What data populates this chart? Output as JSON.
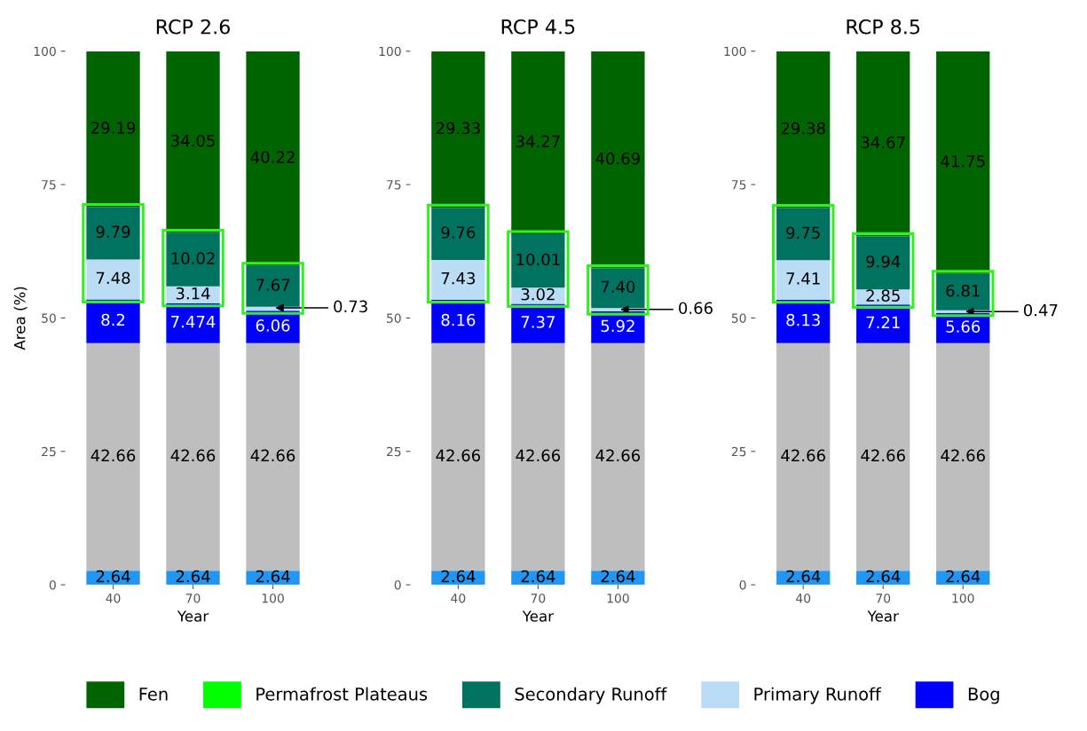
{
  "chart_data": [
    {
      "type": "bar",
      "stacked": true,
      "title": "RCP 2.6",
      "xlabel": "Year",
      "ylabel": "Area (%)",
      "categories": [
        "40",
        "70",
        "100"
      ],
      "ylim": [
        0,
        100
      ],
      "yticks": [
        0,
        25,
        50,
        75,
        100
      ],
      "grid": false,
      "legend": "bottom",
      "series": [
        {
          "color": "#2196f3",
          "values": [
            2.64,
            2.64,
            2.64
          ],
          "value_labels": [
            "2.64",
            "2.64",
            "2.64"
          ]
        },
        {
          "color": "#bebebe",
          "values": [
            42.66,
            42.66,
            42.66
          ],
          "value_labels": [
            "42.66",
            "42.66",
            "42.66"
          ]
        },
        {
          "name": "Bog",
          "color": "#0000ff",
          "values": [
            8.2,
            7.474,
            6.06
          ],
          "value_labels": [
            "8.2",
            "7.474",
            "6.06"
          ]
        },
        {
          "name": "Primary Runoff",
          "color": "#bbdcf5",
          "values": [
            7.48,
            3.14,
            0.73
          ],
          "value_labels": [
            "7.48",
            "3.14",
            null
          ]
        },
        {
          "name": "Secondary Runoff",
          "color": "#007360",
          "values": [
            9.79,
            10.02,
            7.67
          ],
          "value_labels": [
            "9.79",
            "10.02",
            "7.67"
          ]
        },
        {
          "name": "Permafrost Plateaus",
          "color": "#00ff00",
          "values": [
            null,
            null,
            null
          ]
        },
        {
          "name": "Fen",
          "color": "#006400",
          "values": [
            29.19,
            34.05,
            40.22
          ],
          "value_labels": [
            "29.19",
            "34.05",
            "40.22"
          ]
        }
      ],
      "annotations": [
        {
          "text": "0.73",
          "x": "100",
          "y": 51.9
        }
      ]
    },
    {
      "type": "bar",
      "stacked": true,
      "title": "RCP 4.5",
      "xlabel": "Year",
      "categories": [
        "40",
        "70",
        "100"
      ],
      "ylim": [
        0,
        100
      ],
      "yticks": [
        0,
        25,
        50,
        75,
        100
      ],
      "grid": false,
      "series": [
        {
          "color": "#2196f3",
          "values": [
            2.64,
            2.64,
            2.64
          ],
          "value_labels": [
            "2.64",
            "2.64",
            "2.64"
          ]
        },
        {
          "color": "#bebebe",
          "values": [
            42.66,
            42.66,
            42.66
          ],
          "value_labels": [
            "42.66",
            "42.66",
            "42.66"
          ]
        },
        {
          "name": "Bog",
          "color": "#0000ff",
          "values": [
            8.16,
            7.37,
            5.92
          ],
          "value_labels": [
            "8.16",
            "7.37",
            "5.92"
          ]
        },
        {
          "name": "Primary Runoff",
          "color": "#bbdcf5",
          "values": [
            7.43,
            3.02,
            0.66
          ],
          "value_labels": [
            "7.43",
            "3.02",
            null
          ]
        },
        {
          "name": "Secondary Runoff",
          "color": "#007360",
          "values": [
            9.76,
            10.01,
            7.4
          ],
          "value_labels": [
            "9.76",
            "10.01",
            "7.40"
          ]
        },
        {
          "name": "Fen",
          "color": "#006400",
          "values": [
            29.33,
            34.27,
            40.69
          ],
          "value_labels": [
            "29.33",
            "34.27",
            "40.69"
          ]
        }
      ],
      "annotations": [
        {
          "text": "0.66",
          "x": "100",
          "y": 51.6
        }
      ]
    },
    {
      "type": "bar",
      "stacked": true,
      "title": "RCP 8.5",
      "xlabel": "Year",
      "categories": [
        "40",
        "70",
        "100"
      ],
      "ylim": [
        0,
        100
      ],
      "yticks": [
        0,
        25,
        50,
        75,
        100
      ],
      "grid": false,
      "series": [
        {
          "color": "#2196f3",
          "values": [
            2.64,
            2.64,
            2.64
          ],
          "value_labels": [
            "2.64",
            "2.64",
            "2.64"
          ]
        },
        {
          "color": "#bebebe",
          "values": [
            42.66,
            42.66,
            42.66
          ],
          "value_labels": [
            "42.66",
            "42.66",
            "42.66"
          ]
        },
        {
          "name": "Bog",
          "color": "#0000ff",
          "values": [
            8.13,
            7.21,
            5.66
          ],
          "value_labels": [
            "8.13",
            "7.21",
            "5.66"
          ]
        },
        {
          "name": "Primary Runoff",
          "color": "#bbdcf5",
          "values": [
            7.41,
            2.85,
            0.47
          ],
          "value_labels": [
            "7.41",
            "2.85",
            null
          ]
        },
        {
          "name": "Secondary Runoff",
          "color": "#007360",
          "values": [
            9.75,
            9.94,
            6.81
          ],
          "value_labels": [
            "9.75",
            "9.94",
            "6.81"
          ]
        },
        {
          "name": "Fen",
          "color": "#006400",
          "values": [
            29.38,
            34.67,
            41.75
          ],
          "value_labels": [
            "29.38",
            "34.67",
            "41.75"
          ]
        }
      ],
      "annotations": [
        {
          "text": "0.47",
          "x": "100",
          "y": 51.2
        }
      ]
    }
  ]
}
